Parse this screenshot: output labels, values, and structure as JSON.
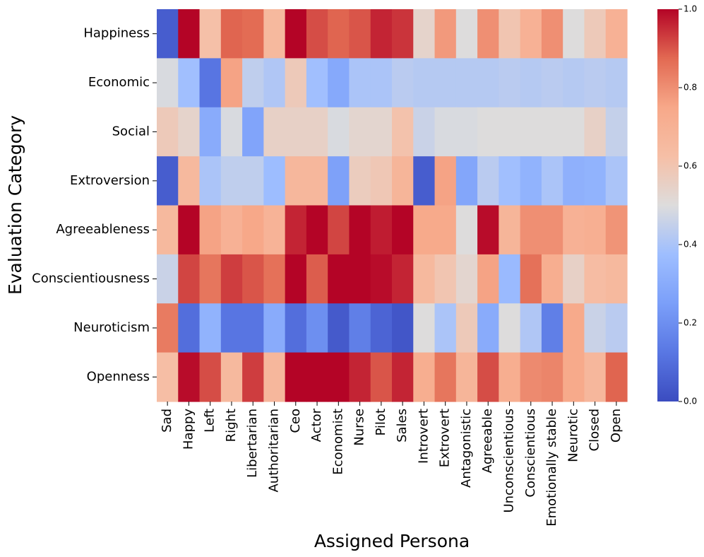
{
  "chart_data": {
    "type": "heatmap",
    "title": "",
    "xlabel": "Assigned Persona",
    "ylabel": "Evaluation Category",
    "columns": [
      "Sad",
      "Happy",
      "Left",
      "Right",
      "Libertarian",
      "Authoritarian",
      "Ceo",
      "Actor",
      "Economist",
      "Nurse",
      "Pilot",
      "Sales",
      "Introvert",
      "Extrovert",
      "Antagonistic",
      "Agreeable",
      "Unconscientious",
      "Conscientious",
      "Emotionally stable",
      "Neurotic",
      "Closed",
      "Open"
    ],
    "rows": [
      "Happiness",
      "Economic",
      "Social",
      "Extroversion",
      "Agreeableness",
      "Conscientiousness",
      "Neuroticism",
      "Openness"
    ],
    "values": [
      [
        0.05,
        1.0,
        0.62,
        0.88,
        0.87,
        0.66,
        1.0,
        0.91,
        0.88,
        0.9,
        0.96,
        0.94,
        0.54,
        0.78,
        0.5,
        0.8,
        0.6,
        0.7,
        0.8,
        0.5,
        0.58,
        0.7
      ],
      [
        0.49,
        0.38,
        0.12,
        0.76,
        0.44,
        0.41,
        0.58,
        0.38,
        0.29,
        0.4,
        0.4,
        0.43,
        0.42,
        0.42,
        0.42,
        0.42,
        0.43,
        0.42,
        0.43,
        0.42,
        0.43,
        0.42
      ],
      [
        0.58,
        0.54,
        0.3,
        0.49,
        0.27,
        0.55,
        0.55,
        0.55,
        0.49,
        0.53,
        0.53,
        0.61,
        0.46,
        0.49,
        0.49,
        0.5,
        0.5,
        0.5,
        0.5,
        0.5,
        0.55,
        0.45
      ],
      [
        0.05,
        0.66,
        0.4,
        0.44,
        0.44,
        0.37,
        0.67,
        0.67,
        0.26,
        0.57,
        0.59,
        0.68,
        0.05,
        0.76,
        0.28,
        0.43,
        0.38,
        0.33,
        0.4,
        0.32,
        0.33,
        0.4
      ],
      [
        0.66,
        1.0,
        0.76,
        0.7,
        0.75,
        0.69,
        0.96,
        1.0,
        0.92,
        1.0,
        0.97,
        1.0,
        0.74,
        0.74,
        0.5,
        0.99,
        0.68,
        0.8,
        0.8,
        0.7,
        0.71,
        0.79
      ],
      [
        0.46,
        0.92,
        0.85,
        0.93,
        0.9,
        0.86,
        1.0,
        0.89,
        1.0,
        1.0,
        0.99,
        0.96,
        0.66,
        0.6,
        0.53,
        0.76,
        0.36,
        0.86,
        0.72,
        0.55,
        0.64,
        0.66
      ],
      [
        0.84,
        0.1,
        0.33,
        0.12,
        0.12,
        0.3,
        0.1,
        0.2,
        0.04,
        0.15,
        0.07,
        0.03,
        0.5,
        0.4,
        0.58,
        0.3,
        0.5,
        0.41,
        0.15,
        0.74,
        0.46,
        0.43
      ],
      [
        0.63,
        0.99,
        0.91,
        0.66,
        0.93,
        0.67,
        1.0,
        1.0,
        1.0,
        0.96,
        0.9,
        0.96,
        0.72,
        0.85,
        0.68,
        0.91,
        0.72,
        0.81,
        0.82,
        0.74,
        0.67,
        0.88
      ]
    ],
    "vmin": 0.0,
    "vmax": 1.0,
    "colormap": "coolwarm",
    "colorbar_ticks": [
      "0.0",
      "0.2",
      "0.4",
      "0.6",
      "0.8",
      "1.0"
    ]
  }
}
